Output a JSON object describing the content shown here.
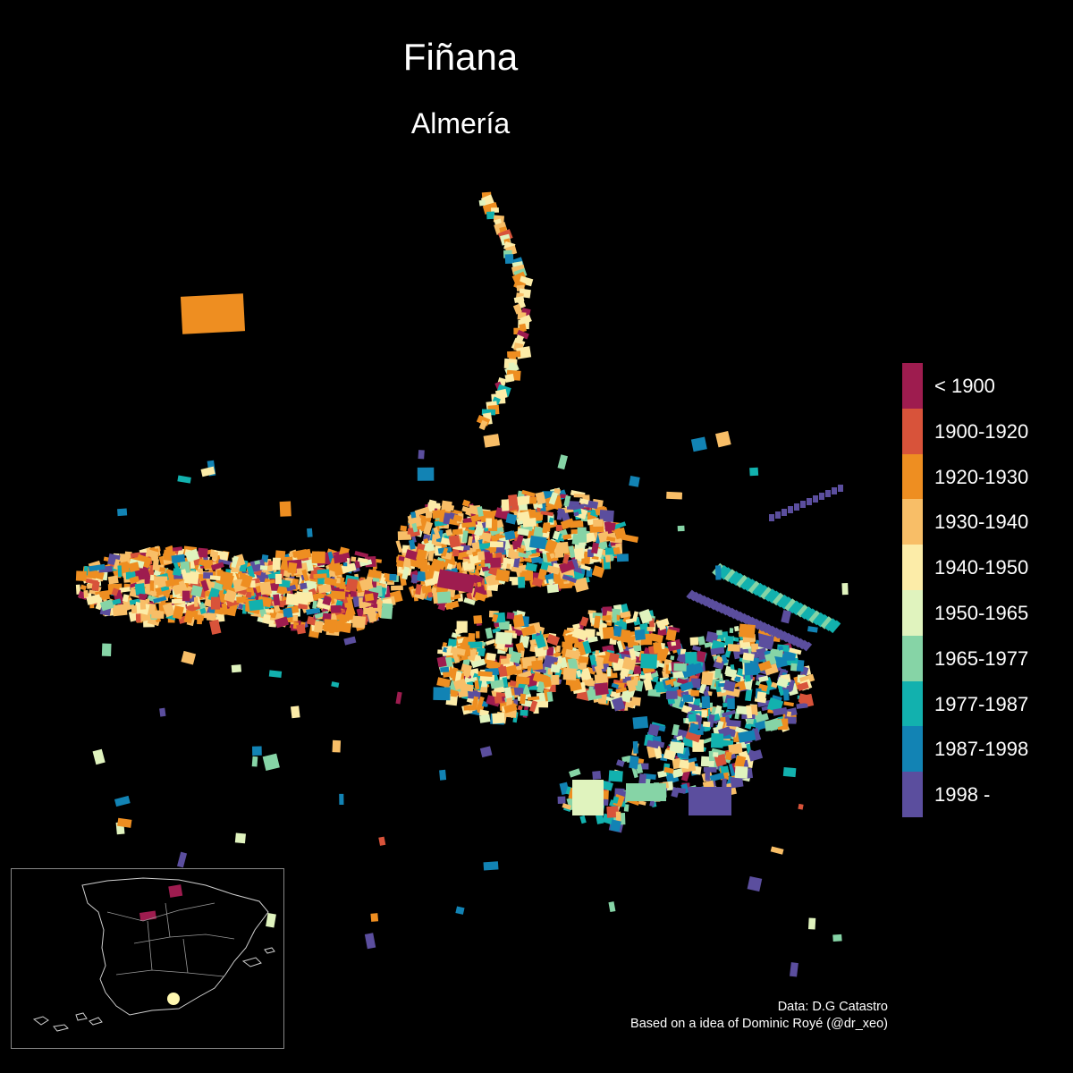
{
  "title": "Fiñana",
  "subtitle": "Almería",
  "legend": {
    "items": [
      {
        "label": "< 1900",
        "color": "#9E1C4F"
      },
      {
        "label": "1900-1920",
        "color": "#D8533A"
      },
      {
        "label": "1920-1930",
        "color": "#EE8E21"
      },
      {
        "label": "1930-1940",
        "color": "#F8BE67"
      },
      {
        "label": "1940-1950",
        "color": "#FCECA8"
      },
      {
        "label": "1950-1965",
        "color": "#E0F3BE"
      },
      {
        "label": "1965-1977",
        "color": "#86D4A6"
      },
      {
        "label": "1977-1987",
        "color": "#12B1AE"
      },
      {
        "label": "1987-1998",
        "color": "#1283B4"
      },
      {
        "label": "1998 -",
        "color": "#5B4E9E"
      }
    ]
  },
  "credits": {
    "line1": "Data: D.G Catastro",
    "line2": "Based on a idea of Dominic Royé (@dr_xeo)"
  },
  "inset": {
    "marker_color": "#FFF8B0",
    "border_color": "#888888"
  },
  "colors": {
    "background": "#000000"
  }
}
